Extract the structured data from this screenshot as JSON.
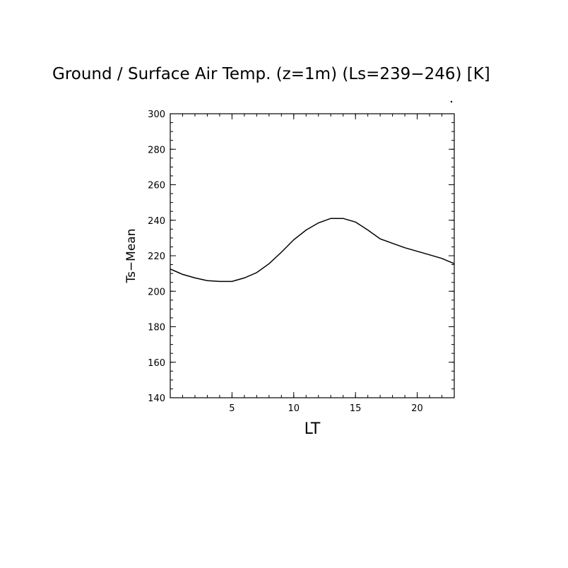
{
  "chart_data": {
    "type": "line",
    "title": "Ground / Surface Air Temp. (z=1m) (Ls=239−246) [K]",
    "xlabel": "LT",
    "ylabel": "Ts−Mean",
    "xlim": [
      0,
      23
    ],
    "ylim": [
      140,
      300
    ],
    "xticks": [
      5,
      10,
      15,
      20
    ],
    "yticks": [
      140,
      160,
      180,
      200,
      220,
      240,
      260,
      280,
      300
    ],
    "grid": false,
    "series": [
      {
        "x": [
          0,
          1,
          2,
          3,
          4,
          5,
          6,
          7,
          8,
          9,
          10,
          11,
          12,
          13,
          14,
          15,
          16,
          17,
          18,
          19,
          20,
          21,
          22,
          23
        ],
        "values": [
          212.5,
          209.5,
          207.5,
          206,
          205.5,
          205.5,
          207.5,
          210.5,
          215.5,
          222,
          229,
          234.5,
          238.5,
          241,
          241,
          239,
          234.5,
          229.5,
          227,
          224.5,
          222.5,
          220.5,
          218.5,
          215.5
        ]
      }
    ]
  }
}
